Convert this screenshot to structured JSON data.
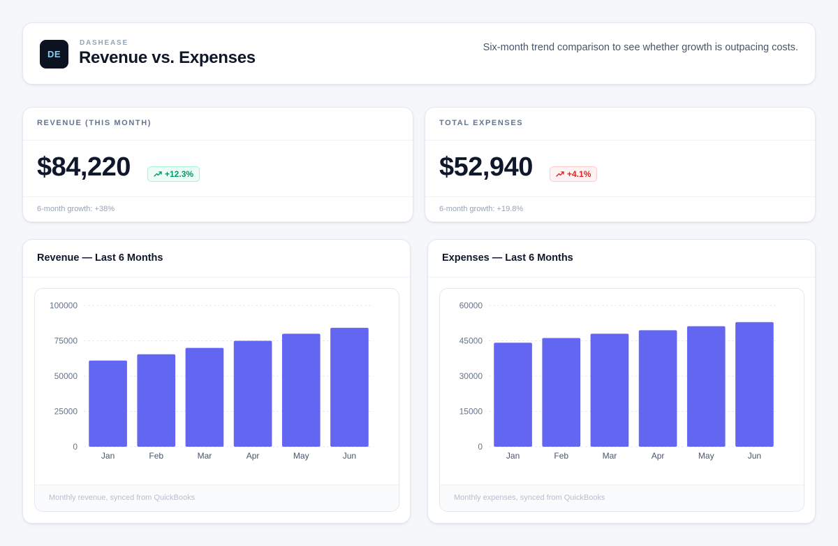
{
  "header": {
    "logo_initials": "DE",
    "brand": "DASHEASE",
    "title": "Revenue vs. Expenses",
    "description": "Six-month trend comparison to see whether growth is outpacing costs."
  },
  "kpis": {
    "revenue": {
      "label": "REVENUE (THIS MONTH)",
      "value": "$84,220",
      "change": "+12.3%",
      "trend": "up",
      "footnote": "6-month growth: +38%"
    },
    "expenses": {
      "label": "TOTAL EXPENSES",
      "value": "$52,940",
      "change": "+4.1%",
      "trend": "up",
      "footnote": "6-month growth: +19.8%"
    }
  },
  "colors": {
    "bar": "#6366f1",
    "positive": "#059669",
    "negative": "#dc2626"
  },
  "icons": {
    "trend": "trending-up-icon"
  },
  "charts": {
    "revenue": {
      "title": "Revenue — Last 6 Months",
      "footnote": "Monthly revenue, synced from QuickBooks"
    },
    "expenses": {
      "title": "Expenses — Last 6 Months",
      "footnote": "Monthly expenses, synced from QuickBooks"
    }
  },
  "chart_data": [
    {
      "type": "bar",
      "title": "Revenue — Last 6 Months",
      "categories": [
        "Jan",
        "Feb",
        "Mar",
        "Apr",
        "May",
        "Jun"
      ],
      "values": [
        61000,
        65500,
        70000,
        75000,
        80000,
        84220
      ],
      "yticks": [
        0,
        25000,
        50000,
        75000,
        100000
      ],
      "ylim": [
        0,
        100000
      ],
      "grid": true
    },
    {
      "type": "bar",
      "title": "Expenses — Last 6 Months",
      "categories": [
        "Jan",
        "Feb",
        "Mar",
        "Apr",
        "May",
        "Jun"
      ],
      "values": [
        44200,
        46200,
        48000,
        49500,
        51200,
        52940
      ],
      "yticks": [
        0,
        15000,
        30000,
        45000,
        60000
      ],
      "ylim": [
        0,
        60000
      ],
      "grid": true
    }
  ]
}
